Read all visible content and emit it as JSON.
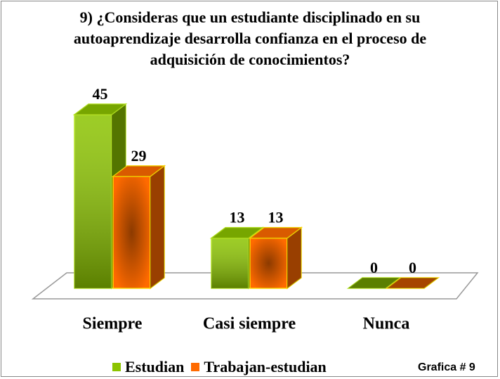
{
  "chart_data": {
    "type": "bar3d",
    "title": "9) ¿Consideras que un estudiante disciplinado en su autoaprendizaje desarrolla confianza en el proceso de adquisición de conocimientos?",
    "categories": [
      "Siempre",
      "Casi siempre",
      "Nunca"
    ],
    "series": [
      {
        "name": "Estudian",
        "color": "#8cc400",
        "values": [
          45,
          13,
          0
        ]
      },
      {
        "name": "Trabajan-estudian",
        "color": "#ff6a00",
        "values": [
          29,
          13,
          0
        ]
      }
    ],
    "annotation": "Grafica # 9"
  }
}
